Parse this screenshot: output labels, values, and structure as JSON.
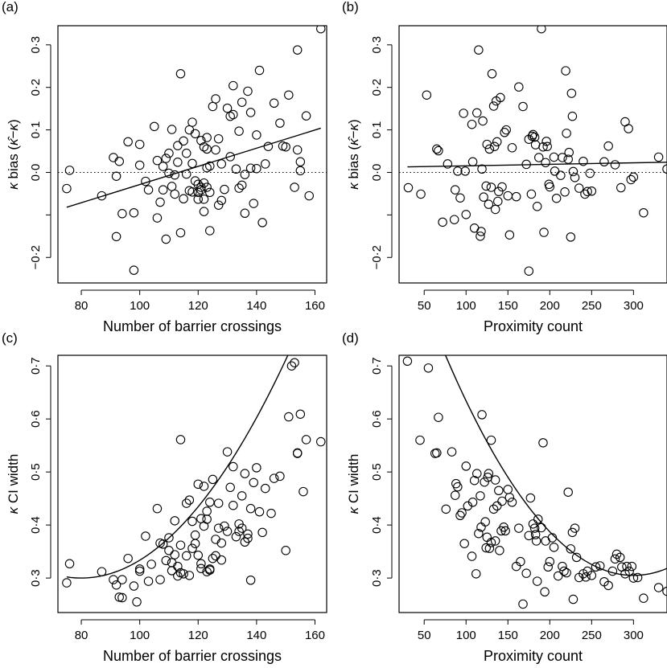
{
  "chart_data": [
    {
      "type": "scatter",
      "panel_label": "(a)",
      "xlabel": "Number of barrier crossings",
      "ylabel": "κ bias (κ̂ − κ)",
      "ylabel_parts": {
        "symbol": "κ",
        "word": "bias",
        "expr_open": "(",
        "expr_hat": "κ̂",
        "expr_minus": "−",
        "expr_k": "κ",
        "expr_close": ")"
      },
      "xlim": [
        72,
        164
      ],
      "ylim": [
        -0.26,
        0.345
      ],
      "xticks": [
        80,
        100,
        120,
        140,
        160
      ],
      "yticks": [
        -0.2,
        -0.1,
        0.0,
        0.1,
        0.2,
        0.3
      ],
      "ytick_labels": [
        "−0·2",
        "",
        "0·0",
        "0·1",
        "0·2",
        "0·3"
      ],
      "reference_line": {
        "y": 0,
        "style": "dotted"
      },
      "fit": {
        "kind": "linear",
        "x": [
          75,
          162
        ],
        "y": [
          -0.082,
          0.104
        ]
      },
      "x": [
        75,
        76,
        87,
        91,
        92,
        92,
        93,
        94,
        96,
        98,
        98,
        100,
        100,
        102,
        103,
        105,
        106,
        106,
        107,
        108,
        108,
        109,
        109,
        110,
        110,
        111,
        111,
        112,
        112,
        113,
        113,
        114,
        114,
        115,
        115,
        116,
        116,
        117,
        117,
        118,
        118,
        118,
        119,
        119,
        120,
        120,
        120,
        121,
        121,
        121,
        122,
        122,
        122,
        122,
        123,
        123,
        123,
        123,
        124,
        124,
        124,
        125,
        126,
        126,
        127,
        127,
        128,
        128,
        129,
        130,
        131,
        131,
        132,
        132,
        133,
        134,
        134,
        135,
        135,
        136,
        136,
        137,
        138,
        138,
        139,
        140,
        140,
        141,
        142,
        143,
        144,
        146,
        148,
        149,
        150,
        151,
        153,
        154,
        154,
        155,
        155,
        157,
        158,
        162
      ],
      "y": [
        -0.038,
        0.005,
        -0.055,
        0.035,
        -0.151,
        -0.009,
        0.026,
        -0.097,
        0.072,
        -0.095,
        -0.23,
        0.066,
        0.017,
        -0.021,
        -0.041,
        0.108,
        0.028,
        -0.107,
        -0.07,
        0.014,
        -0.041,
        -0.157,
        0.033,
        0.045,
        -0.002,
        0.101,
        -0.033,
        -0.006,
        -0.051,
        0.063,
        0.024,
        0.232,
        -0.142,
        0.074,
        -0.062,
        -0.004,
        0.045,
        0.1,
        -0.043,
        0.118,
        0.021,
        -0.046,
        0.091,
        -0.02,
        -0.047,
        -0.028,
        -0.063,
        0.075,
        -0.035,
        -0.041,
        0.06,
        -0.025,
        -0.063,
        -0.092,
        0.055,
        0.011,
        -0.035,
        0.082,
        0.015,
        -0.047,
        -0.137,
        0.155,
        0.173,
        0.053,
        0.079,
        -0.077,
        0.02,
        -0.066,
        -0.04,
        0.151,
        0.132,
        0.037,
        0.204,
        0.136,
        0.008,
        0.097,
        -0.037,
        -0.03,
        0.165,
        -0.005,
        -0.096,
        0.191,
        0.01,
        0.141,
        -0.073,
        0.088,
        0.009,
        0.24,
        -0.118,
        0.02,
        0.061,
        0.163,
        0.116,
        0.062,
        0.06,
        0.182,
        -0.035,
        0.288,
        0.053,
        0.025,
        0.004,
        0.133,
        -0.055,
        0.338
      ]
    },
    {
      "type": "scatter",
      "panel_label": "(b)",
      "xlabel": "Proximity count",
      "ylabel": "κ bias (κ̂ − κ)",
      "ylabel_parts": {
        "symbol": "κ",
        "word": "bias",
        "expr_open": "(",
        "expr_hat": "κ̂",
        "expr_minus": "−",
        "expr_k": "κ",
        "expr_close": ")"
      },
      "xlim": [
        20,
        340
      ],
      "ylim": [
        -0.26,
        0.345
      ],
      "xticks": [
        50,
        100,
        150,
        200,
        250,
        300
      ],
      "yticks": [
        -0.2,
        -0.1,
        0.0,
        0.1,
        0.2,
        0.3
      ],
      "ytick_labels": [
        "−0·2",
        "",
        "0·0",
        "0·1",
        "0·2",
        "0·3"
      ],
      "reference_line": {
        "y": 0,
        "style": "dotted"
      },
      "fit": {
        "kind": "linear",
        "x": [
          30,
          340
        ],
        "y": [
          0.013,
          0.024
        ]
      },
      "x": [
        31,
        46,
        53,
        65,
        67,
        72,
        78,
        86,
        87,
        90,
        93,
        97,
        99,
        100,
        107,
        108,
        110,
        113,
        115,
        117,
        118,
        119,
        120,
        121,
        124,
        125,
        127,
        128,
        130,
        131,
        133,
        134,
        135,
        136,
        137,
        138,
        139,
        141,
        143,
        146,
        148,
        150,
        152,
        155,
        160,
        163,
        168,
        172,
        175,
        175,
        178,
        179,
        180,
        182,
        183,
        185,
        187,
        190,
        192,
        193,
        195,
        196,
        197,
        199,
        200,
        205,
        206,
        208,
        213,
        215,
        218,
        219,
        220,
        222,
        223,
        225,
        226,
        227,
        228,
        230,
        235,
        240,
        242,
        245,
        248,
        250,
        265,
        270,
        278,
        285,
        290,
        294,
        297,
        300,
        312,
        330,
        340
      ],
      "y": [
        -0.036,
        -0.051,
        0.182,
        0.055,
        0.051,
        -0.117,
        0.02,
        -0.111,
        -0.041,
        0.003,
        -0.06,
        0.139,
        0.003,
        -0.099,
        0.113,
        0.025,
        -0.131,
        0.14,
        0.288,
        -0.15,
        -0.139,
        0.008,
        0.121,
        -0.058,
        -0.032,
        0.066,
        -0.075,
        0.055,
        -0.035,
        0.232,
        0.156,
        0.061,
        -0.087,
        0.168,
        0.072,
        -0.068,
        -0.045,
        0.176,
        -0.034,
        0.094,
        0.1,
        -0.055,
        -0.147,
        0.058,
        -0.057,
        0.201,
        0.155,
        0.019,
        -0.232,
        0.078,
        -0.051,
        0.085,
        0.089,
        0.083,
        0.065,
        -0.08,
        0.035,
        0.338,
        0.06,
        -0.141,
        0.023,
        0.073,
        0.061,
        -0.028,
        -0.034,
        0.036,
        0.003,
        -0.061,
        -0.007,
        0.035,
        -0.046,
        0.239,
        0.092,
        0.031,
        0.047,
        -0.152,
        0.186,
        0.132,
        0.002,
        -0.012,
        -0.037,
        0.026,
        -0.051,
        -0.045,
        -0.002,
        -0.044,
        0.025,
        0.062,
        0.018,
        -0.036,
        0.119,
        0.103,
        -0.017,
        -0.011,
        -0.095,
        0.036,
        0.008
      ]
    },
    {
      "type": "scatter",
      "panel_label": "(c)",
      "xlabel": "Number of barrier crossings",
      "ylabel": "κ CI width",
      "ylabel_parts": {
        "symbol": "κ",
        "word": "CI width"
      },
      "xlim": [
        72,
        164
      ],
      "ylim": [
        0.235,
        0.72
      ],
      "xticks": [
        80,
        100,
        120,
        140,
        160
      ],
      "yticks": [
        0.3,
        0.4,
        0.5,
        0.6,
        0.7
      ],
      "ytick_labels": [
        "0·3",
        "0·4",
        "0·5",
        "0·6",
        "0·7"
      ],
      "fit": {
        "kind": "quadratic",
        "a": 8.4e-05,
        "x_min": 80,
        "y_min": 0.3,
        "x_range": [
          75,
          162
        ]
      },
      "x": [
        75,
        76,
        87,
        91,
        92,
        93,
        94,
        94,
        96,
        98,
        99,
        100,
        100,
        102,
        103,
        104,
        106,
        107,
        107,
        108,
        109,
        110,
        110,
        111,
        111,
        112,
        112,
        113,
        113,
        114,
        114,
        114,
        115,
        116,
        116,
        117,
        117,
        118,
        118,
        119,
        119,
        120,
        120,
        121,
        121,
        121,
        122,
        122,
        123,
        123,
        123,
        124,
        124,
        124,
        125,
        125,
        126,
        126,
        127,
        127,
        128,
        128,
        129,
        130,
        130,
        131,
        132,
        132,
        133,
        134,
        134,
        135,
        135,
        136,
        136,
        137,
        137,
        138,
        138,
        139,
        140,
        141,
        142,
        143,
        145,
        146,
        148,
        150,
        151,
        152,
        153,
        154,
        154,
        155,
        156,
        157,
        162
      ],
      "y": [
        0.291,
        0.327,
        0.312,
        0.297,
        0.287,
        0.264,
        0.263,
        0.297,
        0.337,
        0.285,
        0.255,
        0.313,
        0.317,
        0.379,
        0.294,
        0.326,
        0.431,
        0.297,
        0.366,
        0.364,
        0.333,
        0.376,
        0.352,
        0.329,
        0.314,
        0.344,
        0.408,
        0.322,
        0.304,
        0.31,
        0.362,
        0.561,
        0.308,
        0.441,
        0.342,
        0.447,
        0.305,
        0.407,
        0.356,
        0.365,
        0.381,
        0.477,
        0.343,
        0.412,
        0.327,
        0.318,
        0.398,
        0.473,
        0.411,
        0.426,
        0.312,
        0.443,
        0.317,
        0.315,
        0.337,
        0.486,
        0.342,
        0.373,
        0.394,
        0.441,
        0.334,
        0.366,
        0.398,
        0.388,
        0.538,
        0.471,
        0.51,
        0.437,
        0.378,
        0.402,
        0.388,
        0.394,
        0.455,
        0.497,
        0.368,
        0.383,
        0.375,
        0.296,
        0.431,
        0.48,
        0.508,
        0.425,
        0.386,
        0.469,
        0.422,
        0.488,
        0.492,
        0.352,
        0.604,
        0.7,
        0.706,
        0.536,
        0.535,
        0.609,
        0.463,
        0.561,
        0.557
      ]
    },
    {
      "type": "scatter",
      "panel_label": "(d)",
      "xlabel": "Proximity count",
      "ylabel": "κ CI width",
      "ylabel_parts": {
        "symbol": "κ",
        "word": "CI width"
      },
      "xlim": [
        20,
        340
      ],
      "ylim": [
        0.235,
        0.72
      ],
      "xticks": [
        50,
        100,
        150,
        200,
        250,
        300
      ],
      "yticks": [
        0.3,
        0.4,
        0.5,
        0.6,
        0.7
      ],
      "ytick_labels": [
        "0·3",
        "0·4",
        "0·5",
        "0·6",
        "0·7"
      ],
      "fit": {
        "kind": "quadratic",
        "a": 8.23e-06,
        "x_min": 300,
        "y_min": 0.305,
        "x_range": [
          30,
          340
        ]
      },
      "x": [
        30,
        45,
        55,
        63,
        65,
        67,
        76,
        83,
        87,
        88,
        90,
        93,
        95,
        98,
        100,
        102,
        107,
        108,
        110,
        112,
        113,
        115,
        117,
        118,
        119,
        122,
        123,
        124,
        125,
        126,
        127,
        128,
        130,
        130,
        133,
        135,
        135,
        137,
        139,
        140,
        142,
        143,
        145,
        147,
        150,
        152,
        155,
        160,
        163,
        165,
        168,
        172,
        175,
        177,
        180,
        182,
        183,
        184,
        185,
        186,
        190,
        192,
        194,
        195,
        198,
        200,
        203,
        205,
        210,
        215,
        217,
        220,
        222,
        225,
        227,
        228,
        230,
        232,
        235,
        240,
        243,
        245,
        250,
        255,
        260,
        265,
        270,
        275,
        278,
        280,
        284,
        286,
        290,
        292,
        295,
        298,
        300,
        305,
        312,
        330,
        340
      ],
      "y": [
        0.709,
        0.56,
        0.696,
        0.535,
        0.536,
        0.603,
        0.43,
        0.538,
        0.456,
        0.478,
        0.472,
        0.418,
        0.423,
        0.365,
        0.511,
        0.436,
        0.341,
        0.443,
        0.484,
        0.308,
        0.497,
        0.384,
        0.455,
        0.396,
        0.608,
        0.481,
        0.406,
        0.357,
        0.377,
        0.49,
        0.497,
        0.356,
        0.367,
        0.56,
        0.43,
        0.37,
        0.485,
        0.436,
        0.465,
        0.352,
        0.389,
        0.445,
        0.396,
        0.389,
        0.467,
        0.452,
        0.443,
        0.322,
        0.394,
        0.331,
        0.251,
        0.309,
        0.38,
        0.451,
        0.402,
        0.394,
        0.382,
        0.37,
        0.294,
        0.411,
        0.395,
        0.555,
        0.274,
        0.37,
        0.321,
        0.331,
        0.376,
        0.358,
        0.304,
        0.322,
        0.313,
        0.31,
        0.462,
        0.355,
        0.386,
        0.26,
        0.394,
        0.339,
        0.301,
        0.308,
        0.302,
        0.313,
        0.305,
        0.321,
        0.323,
        0.293,
        0.286,
        0.313,
        0.336,
        0.345,
        0.339,
        0.321,
        0.308,
        0.322,
        0.313,
        0.322,
        0.3,
        0.301,
        0.262,
        0.282,
        0.275
      ]
    }
  ]
}
